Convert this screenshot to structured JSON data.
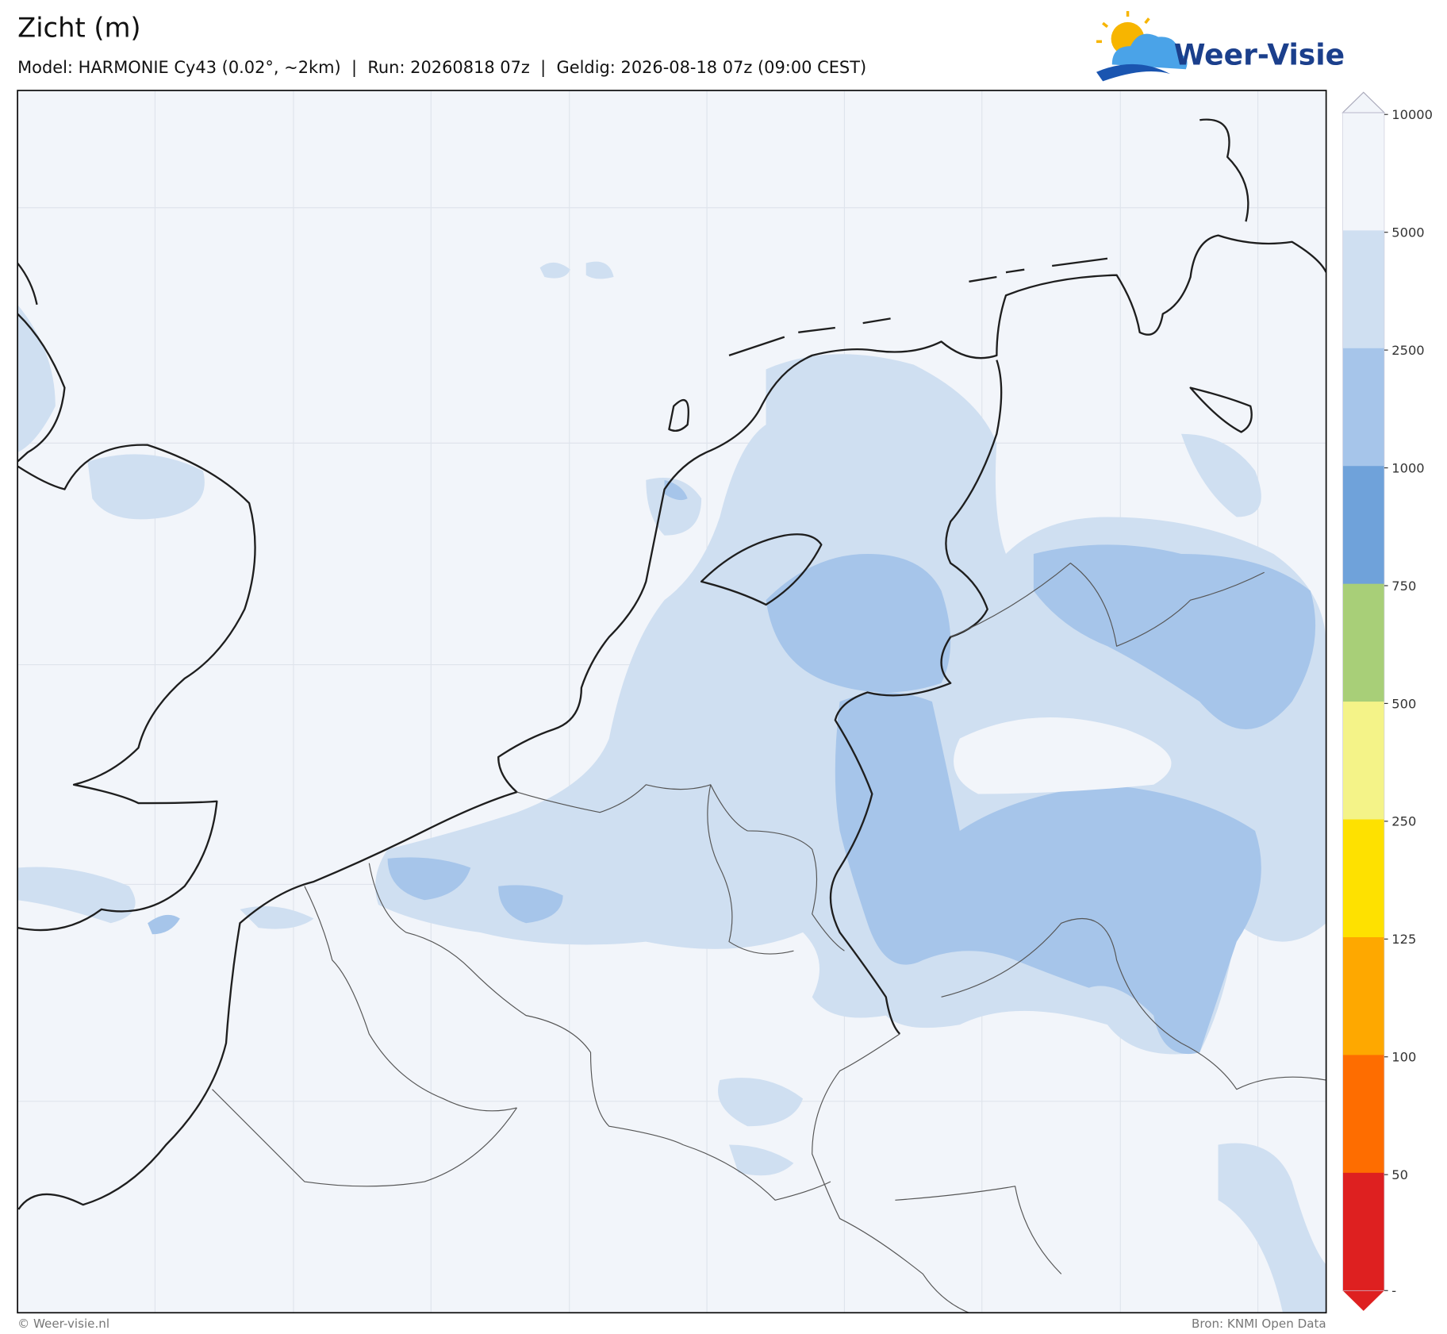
{
  "header": {
    "title": "Zicht (m)",
    "subtitle": "Model: HARMONIE Cy43 (0.02°, ~2km)  |  Run: 20260818 07z  |  Geldig: 2026-08-18 07z (09:00 CEST)"
  },
  "logo": {
    "text": "Weer-Visie"
  },
  "colorbar": {
    "ticks": [
      10000,
      5000,
      2500,
      1000,
      750,
      500,
      250,
      125,
      100,
      50,
      "-"
    ],
    "colors": [
      "#f2f5fa",
      "#cfdff1",
      "#a6c5ea",
      "#6fa2da",
      "#a8cf78",
      "#f4f388",
      "#fee100",
      "#fea800",
      "#fe6d00",
      "#de2020"
    ]
  },
  "footer": {
    "left": "© Weer-visie.nl",
    "right": "Bron: KNMI Open Data"
  }
}
